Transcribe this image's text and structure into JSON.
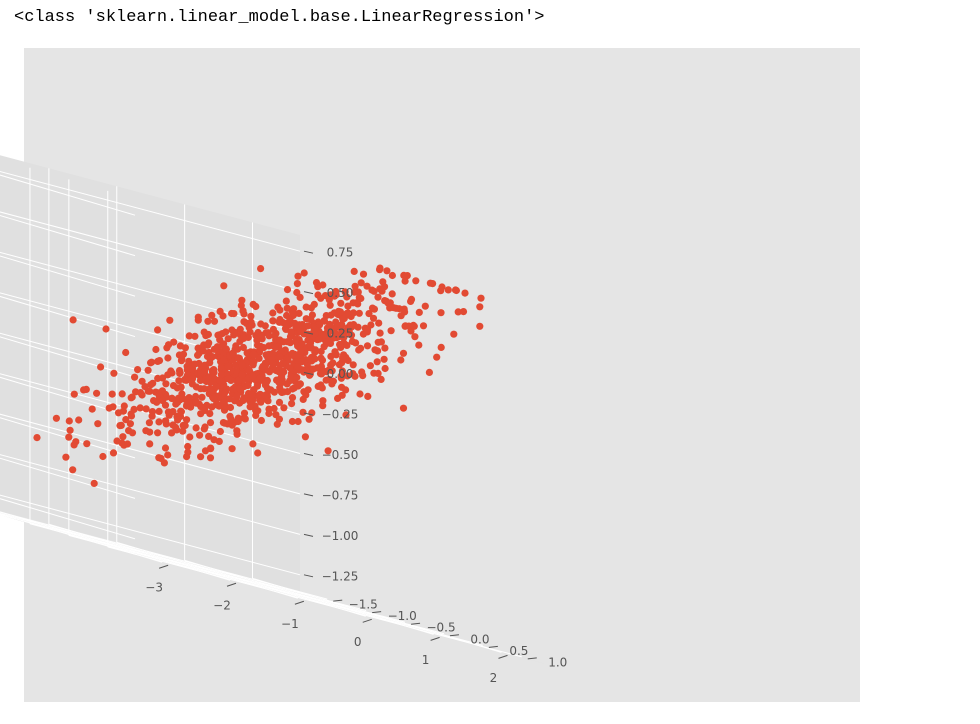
{
  "output_text": "<class 'sklearn.linear_model.base.LinearRegression'>",
  "colors": {
    "panel": "#e5e5e5",
    "pane_back": "#e0e0e0",
    "pane_side": "#ebebeb",
    "pane_floor": "#e3e3e3",
    "grid": "#ffffff",
    "point": "#e24a33",
    "tick": "#555555"
  },
  "chart_data": {
    "type": "scatter",
    "projection": "3d",
    "style": "ggplot",
    "title": "",
    "xlabel": "",
    "ylabel": "",
    "zlabel": "",
    "grid": true,
    "xlim": [
      -3.4,
      2.7
    ],
    "ylim": [
      -1.85,
      1.35
    ],
    "zlim": [
      -1.35,
      0.85
    ],
    "xticks": [
      -3,
      -2,
      -1,
      0,
      1,
      2
    ],
    "xtick_labels": [
      "−3",
      "−2",
      "−1",
      "0",
      "1",
      "2"
    ],
    "yticks": [
      -1.5,
      -1.0,
      -0.5,
      0.0,
      0.5,
      1.0
    ],
    "ytick_labels": [
      "−1.5",
      "−1.0",
      "−0.5",
      "0.0",
      "0.5",
      "1.0"
    ],
    "zticks": [
      -1.25,
      -1.0,
      -0.75,
      -0.5,
      -0.25,
      0.0,
      0.25,
      0.5,
      0.75
    ],
    "ztick_labels": [
      "−1.25",
      "−1.00",
      "−0.75",
      "−0.50",
      "−0.25",
      "0.00",
      "0.25",
      "0.50",
      "0.75"
    ],
    "series": [
      {
        "n_points": 1000,
        "distribution": "x ~ N(0,1), y ~ N(0,0.5) clipped, z ≈ 0.3x + 0.2y + noise(0.18); visible as one dense cloud rising from x=-3 to x=2",
        "x_range": [
          -3.0,
          2.4
        ],
        "y_range": [
          -1.6,
          1.2
        ],
        "z_range": [
          -1.25,
          0.8
        ]
      }
    ]
  }
}
